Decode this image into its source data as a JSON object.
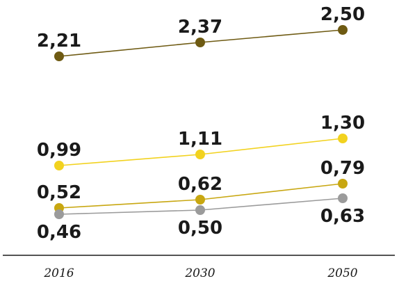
{
  "chart_data": {
    "type": "line",
    "title": "",
    "xlabel": "",
    "ylabel": "",
    "categories": [
      "2016",
      "2030",
      "2050"
    ],
    "ylim": [
      0.25,
      2.6
    ],
    "grid": false,
    "legend": "none",
    "series": [
      {
        "color": "#6e5a12",
        "values": [
          2.21,
          2.37,
          2.5
        ],
        "labels": [
          "2,21",
          "2,37",
          "2,50"
        ],
        "label_pos": [
          "above",
          "above",
          "above"
        ]
      },
      {
        "color": "#f2d21f",
        "values": [
          0.99,
          1.11,
          1.3
        ],
        "labels": [
          "0,99",
          "1,11",
          "1,30"
        ],
        "label_pos": [
          "above",
          "above",
          "above"
        ]
      },
      {
        "color": "#c8a711",
        "values": [
          0.52,
          0.62,
          0.79
        ],
        "labels": [
          "0,52",
          "0,62",
          "0,79"
        ],
        "label_pos": [
          "above",
          "above",
          "above"
        ]
      },
      {
        "color": "#9b9b9b",
        "values": [
          0.46,
          0.5,
          0.63
        ],
        "labels": [
          "0,46",
          "0,50",
          "0,63"
        ],
        "label_pos": [
          "below",
          "below",
          "below"
        ]
      }
    ]
  }
}
